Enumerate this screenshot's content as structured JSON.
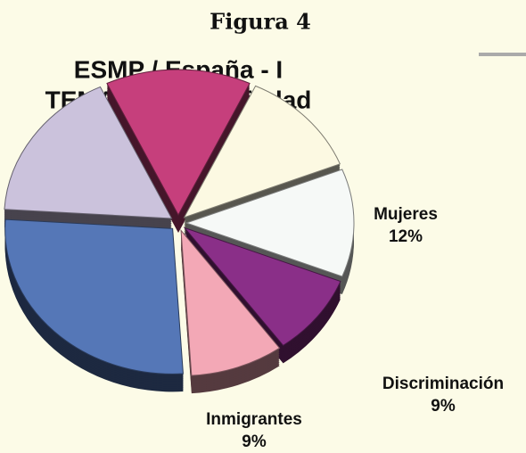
{
  "chart_data": {
    "type": "pie",
    "figure_label": "Figura 4",
    "title": [
      "ESMP / España - I",
      "TEMAS de la sociedad"
    ],
    "categories": [
      null,
      null,
      "Mujeres",
      "Discriminación",
      "Inmigrantes",
      null,
      null
    ],
    "values": [
      14,
      12,
      12,
      9,
      9,
      27,
      17
    ],
    "value_labels": [
      null,
      null,
      "12%",
      "9%",
      "9%",
      null,
      null
    ],
    "colors": [
      "#c63f7c",
      "#fcf9e2",
      "#f6f9f7",
      "#8a2f88",
      "#f3a8b6",
      "#5577b7",
      "#cbc2dc"
    ],
    "start_angle": -25.2
  }
}
